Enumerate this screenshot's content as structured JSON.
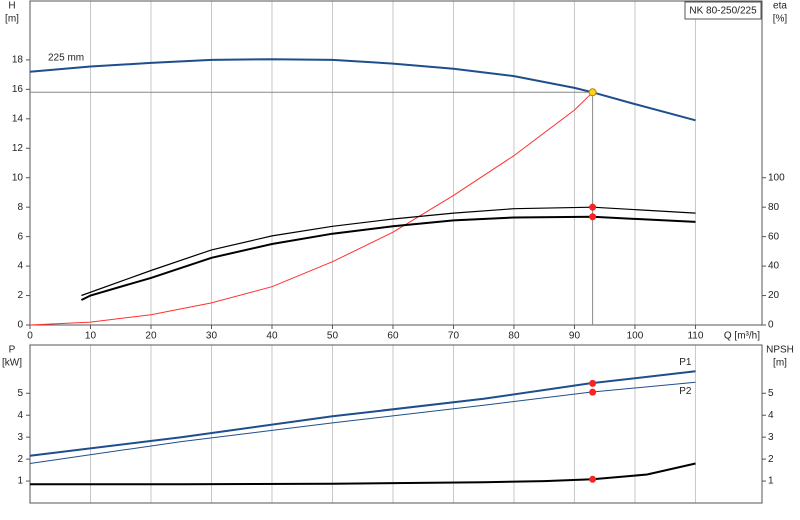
{
  "chart_data": [
    {
      "type": "line",
      "title": "NK 80-250/225",
      "y_label": [
        "H",
        "[m]"
      ],
      "y2_label": [
        "eta",
        "[%]"
      ],
      "x_label": "Q [m³/h]",
      "xlim": [
        0,
        121
      ],
      "xticks": [
        0,
        10,
        20,
        30,
        40,
        50,
        60,
        70,
        80,
        90,
        100,
        110
      ],
      "ylim": [
        0,
        22
      ],
      "yticks": [
        0,
        2,
        4,
        6,
        8,
        10,
        12,
        14,
        16,
        18
      ],
      "y2lim": [
        0,
        220
      ],
      "y2ticks": [
        0,
        20,
        40,
        60,
        80,
        100
      ],
      "grid": true,
      "series": [
        {
          "name": "225 mm",
          "color": "#1f4e8c",
          "width": 2,
          "x": [
            0,
            10,
            20,
            30,
            40,
            50,
            60,
            70,
            80,
            90,
            93,
            100,
            110
          ],
          "values": [
            17.2,
            17.55,
            17.8,
            18.0,
            18.05,
            18.0,
            17.75,
            17.4,
            16.9,
            16.1,
            15.8,
            15.0,
            13.9
          ]
        },
        {
          "color": "#ff3030",
          "width": 1,
          "x": [
            0,
            10,
            20,
            30,
            40,
            50,
            60,
            70,
            80,
            90,
            93
          ],
          "values": [
            0,
            0.2,
            0.7,
            1.5,
            2.6,
            4.3,
            6.3,
            8.8,
            11.5,
            14.6,
            15.8
          ]
        },
        {
          "color": "#000000",
          "width": 1.2,
          "axis": "y2",
          "x": [
            8.5,
            20,
            30,
            40,
            50,
            60,
            70,
            80,
            93,
            110
          ],
          "values": [
            20,
            37,
            51,
            60.5,
            67,
            72,
            76,
            79,
            80,
            76
          ]
        },
        {
          "color": "#000000",
          "width": 2,
          "axis": "y2",
          "x": [
            8.5,
            10,
            20,
            30,
            40,
            50,
            60,
            70,
            80,
            93,
            110
          ],
          "values": [
            17,
            20,
            32,
            45.6,
            55,
            62,
            67,
            71,
            73,
            73.5,
            70
          ]
        }
      ],
      "points": [
        {
          "x": 93,
          "y": 15.8,
          "color": "#ffd21f"
        },
        {
          "x": 93,
          "y": 80,
          "color": "#ff2020",
          "axis": "y2"
        },
        {
          "x": 93,
          "y": 73.5,
          "color": "#ff2020",
          "axis": "y2"
        }
      ]
    },
    {
      "type": "line",
      "y_label": [
        "P",
        "[kW]"
      ],
      "y2_label": [
        "NPSH",
        "[m]"
      ],
      "xlim": [
        0,
        121
      ],
      "ylim": [
        0,
        7.2
      ],
      "yticks": [
        1,
        2,
        3,
        4,
        5
      ],
      "y2lim": [
        0,
        7.2
      ],
      "y2ticks": [
        1,
        2,
        3,
        4,
        5
      ],
      "series": [
        {
          "name": "P1",
          "color": "#1f4e8c",
          "width": 2,
          "x": [
            0,
            25,
            50,
            75,
            92.5,
            110
          ],
          "values": [
            2.15,
            3.0,
            3.95,
            4.75,
            5.45,
            6.0
          ]
        },
        {
          "name": "P2",
          "color": "#1f4e8c",
          "width": 1,
          "x": [
            0,
            25,
            50,
            75,
            92.5,
            110
          ],
          "values": [
            1.8,
            2.8,
            3.65,
            4.45,
            5.05,
            5.5
          ]
        },
        {
          "color": "#000000",
          "width": 2,
          "axis": "y2",
          "x": [
            0,
            25,
            50,
            75,
            85,
            93,
            102,
            110
          ],
          "values": [
            0.85,
            0.85,
            0.88,
            0.95,
            1.0,
            1.08,
            1.3,
            1.8
          ]
        }
      ],
      "points": [
        {
          "x": 93,
          "y": 5.45,
          "color": "#ff2020"
        },
        {
          "x": 93,
          "y": 5.05,
          "color": "#ff2020"
        },
        {
          "x": 93,
          "y": 1.08,
          "color": "#ff2020",
          "axis": "y2"
        }
      ]
    }
  ]
}
